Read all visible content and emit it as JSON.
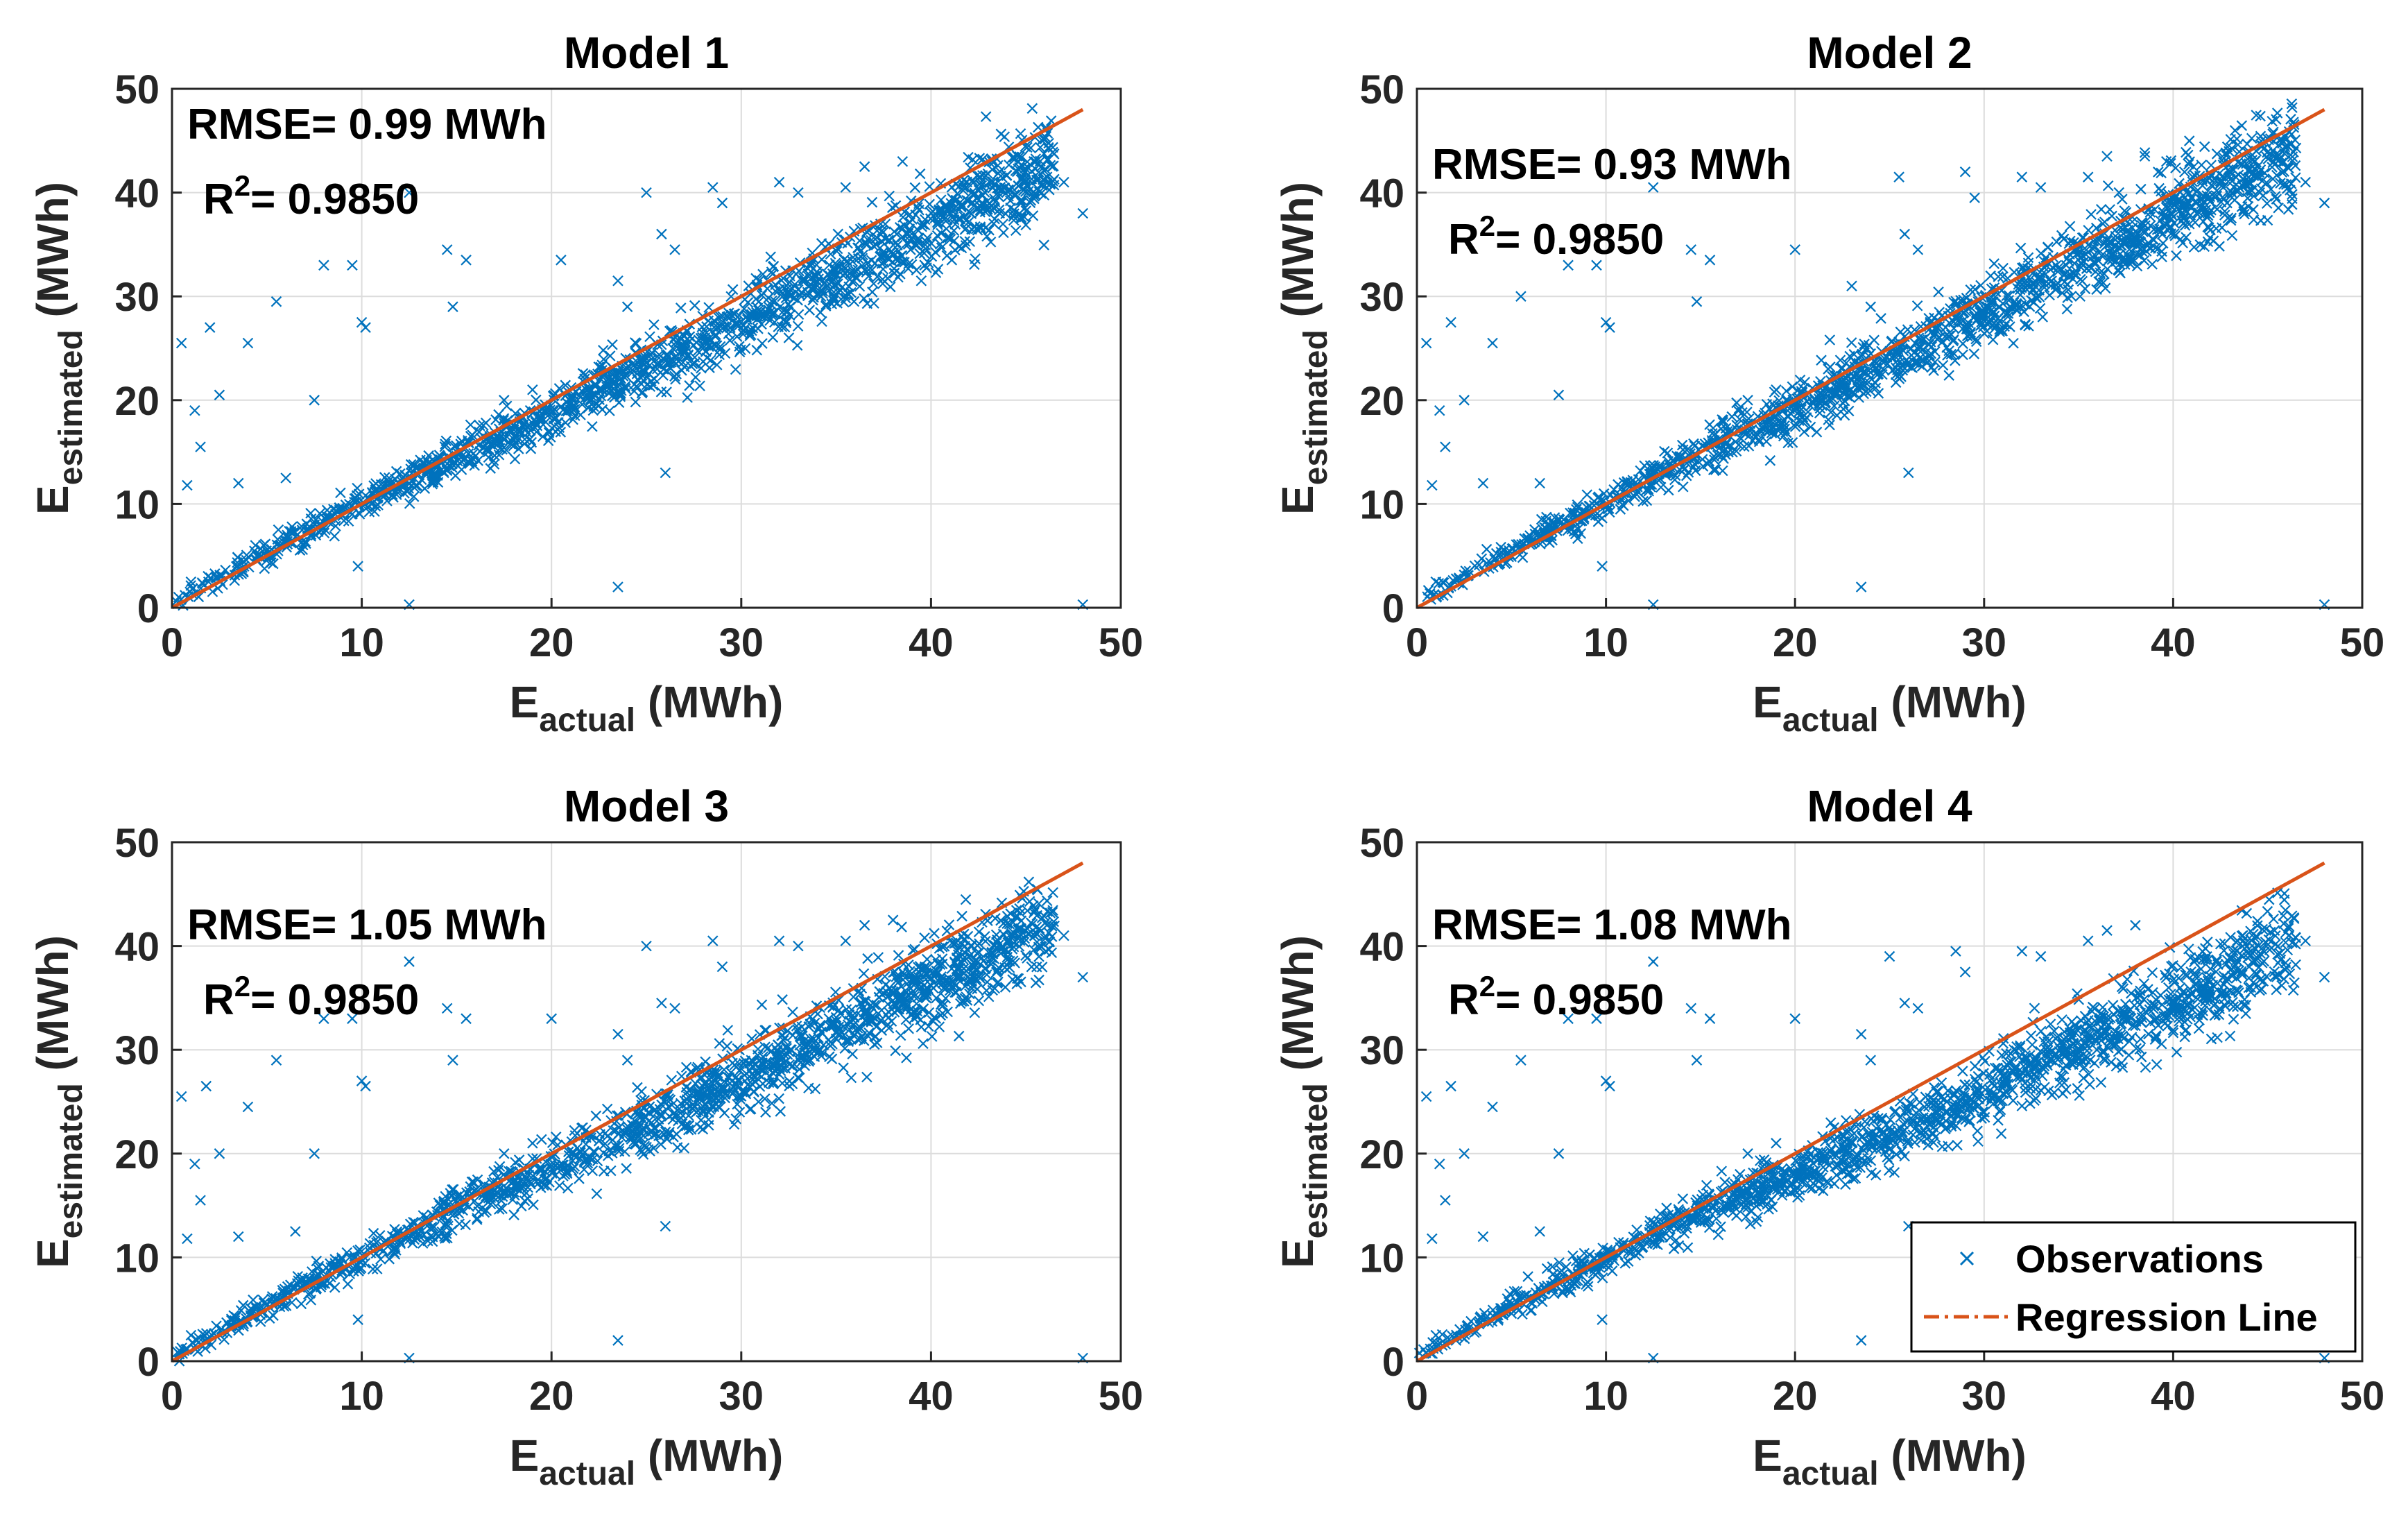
{
  "colors": {
    "observations": "#0072BD",
    "regression": "#D95319",
    "grid": "#DCDCDC",
    "axes": "#262626"
  },
  "chart_data": [
    {
      "type": "scatter",
      "title": "Model 1",
      "xlabel": {
        "main": "E",
        "sub": "actual",
        "unit": " (MWh)"
      },
      "ylabel": {
        "main": "E",
        "sub": "estimated",
        "unit": " (MWh)"
      },
      "xlim": [
        0,
        50
      ],
      "ylim": [
        0,
        50
      ],
      "xticks": [
        "0",
        "10",
        "20",
        "30",
        "40",
        "50"
      ],
      "yticks": [
        "0",
        "10",
        "20",
        "30",
        "40",
        "50"
      ],
      "grid": true,
      "annotations": {
        "rmse": "RMSE= 0.99 MWh",
        "r2_prefix": "R",
        "r2_sup": "2",
        "r2_value": "= 0.9850"
      },
      "regression": {
        "x": [
          0,
          48
        ],
        "y": [
          0,
          48
        ]
      },
      "trend_slope": 0.92,
      "outliers": [
        [
          0.5,
          25.5
        ],
        [
          0.8,
          11.8
        ],
        [
          1.2,
          19.0
        ],
        [
          1.5,
          15.5
        ],
        [
          2.0,
          27.0
        ],
        [
          2.5,
          20.5
        ],
        [
          3.5,
          12.0
        ],
        [
          4.0,
          25.5
        ],
        [
          5.5,
          29.5
        ],
        [
          6.0,
          12.5
        ],
        [
          7.5,
          20.0
        ],
        [
          8.0,
          33.0
        ],
        [
          9.5,
          33.0
        ],
        [
          10.0,
          27.5
        ],
        [
          10.2,
          27.0
        ],
        [
          9.8,
          4.0
        ],
        [
          12.5,
          0.3
        ],
        [
          12.5,
          40.0
        ],
        [
          14.5,
          34.5
        ],
        [
          14.8,
          29.0
        ],
        [
          15.5,
          33.5
        ],
        [
          17.5,
          20.0
        ],
        [
          19.0,
          21.0
        ],
        [
          20.5,
          33.5
        ],
        [
          23.5,
          2.0
        ],
        [
          23.5,
          31.5
        ],
        [
          24.0,
          29.0
        ],
        [
          25.0,
          40.0
        ],
        [
          25.8,
          36.0
        ],
        [
          26.0,
          13.0
        ],
        [
          26.5,
          34.5
        ],
        [
          28.5,
          40.5
        ],
        [
          29.0,
          39.0
        ],
        [
          32.0,
          41.0
        ],
        [
          33.0,
          40.0
        ],
        [
          35.5,
          40.5
        ],
        [
          36.5,
          42.5
        ],
        [
          38.5,
          43.0
        ],
        [
          47.0,
          41.0
        ],
        [
          48.0,
          38.0
        ],
        [
          48.0,
          0.3
        ],
        [
          1.0,
          2.5
        ]
      ]
    },
    {
      "type": "scatter",
      "title": "Model 2",
      "xlabel": {
        "main": "E",
        "sub": "actual",
        "unit": " (MWh)"
      },
      "ylabel": {
        "main": "E",
        "sub": "estimated",
        "unit": " (MWh)"
      },
      "xlim": [
        0,
        50
      ],
      "ylim": [
        0,
        50
      ],
      "xticks": [
        "0",
        "10",
        "20",
        "30",
        "40",
        "50"
      ],
      "yticks": [
        "0",
        "10",
        "20",
        "30",
        "40",
        "50"
      ],
      "grid": true,
      "annotations": {
        "rmse": "RMSE= 0.93 MWh",
        "r2_prefix": "R",
        "r2_sup": "2",
        "r2_value": "= 0.9850"
      },
      "regression": {
        "x": [
          0,
          48
        ],
        "y": [
          0,
          48
        ]
      },
      "trend_slope": 0.95,
      "outliers": [
        [
          0.5,
          25.5
        ],
        [
          0.8,
          11.8
        ],
        [
          1.2,
          19.0
        ],
        [
          1.5,
          15.5
        ],
        [
          1.8,
          27.5
        ],
        [
          2.5,
          20.0
        ],
        [
          3.5,
          12.0
        ],
        [
          4.0,
          25.5
        ],
        [
          5.5,
          30.0
        ],
        [
          6.5,
          12.0
        ],
        [
          7.5,
          20.5
        ],
        [
          8.0,
          33.0
        ],
        [
          9.5,
          33.0
        ],
        [
          10.0,
          27.5
        ],
        [
          10.2,
          27.0
        ],
        [
          9.8,
          4.0
        ],
        [
          12.5,
          0.3
        ],
        [
          12.5,
          40.5
        ],
        [
          14.5,
          34.5
        ],
        [
          14.8,
          29.5
        ],
        [
          15.5,
          33.5
        ],
        [
          17.5,
          20.0
        ],
        [
          19.0,
          21.0
        ],
        [
          20.0,
          34.5
        ],
        [
          23.5,
          2.0
        ],
        [
          23.0,
          31.0
        ],
        [
          24.0,
          29.0
        ],
        [
          25.5,
          41.5
        ],
        [
          25.8,
          36.0
        ],
        [
          26.0,
          13.0
        ],
        [
          26.5,
          34.5
        ],
        [
          29.0,
          42.0
        ],
        [
          29.5,
          39.5
        ],
        [
          32.0,
          41.5
        ],
        [
          33.0,
          40.5
        ],
        [
          35.5,
          41.5
        ],
        [
          36.5,
          43.5
        ],
        [
          38.5,
          43.5
        ],
        [
          47.0,
          41.0
        ],
        [
          48.0,
          39.0
        ],
        [
          48.0,
          0.3
        ],
        [
          1.0,
          2.5
        ]
      ]
    },
    {
      "type": "scatter",
      "title": "Model 3",
      "xlabel": {
        "main": "E",
        "sub": "actual",
        "unit": " (MWh)"
      },
      "ylabel": {
        "main": "E",
        "sub": "estimated",
        "unit": " (MWh)"
      },
      "xlim": [
        0,
        50
      ],
      "ylim": [
        0,
        50
      ],
      "xticks": [
        "0",
        "10",
        "20",
        "30",
        "40",
        "50"
      ],
      "yticks": [
        "0",
        "10",
        "20",
        "30",
        "40",
        "50"
      ],
      "grid": true,
      "annotations": {
        "rmse": "RMSE= 1.05 MWh",
        "r2_prefix": "R",
        "r2_sup": "2",
        "r2_value": "= 0.9850"
      },
      "regression": {
        "x": [
          0,
          48
        ],
        "y": [
          0,
          48
        ]
      },
      "trend_slope": 0.91,
      "outliers": [
        [
          0.5,
          25.5
        ],
        [
          0.8,
          11.8
        ],
        [
          1.2,
          19.0
        ],
        [
          1.5,
          15.5
        ],
        [
          1.8,
          26.5
        ],
        [
          2.5,
          20.0
        ],
        [
          3.5,
          12.0
        ],
        [
          4.0,
          24.5
        ],
        [
          5.5,
          29.0
        ],
        [
          6.5,
          12.5
        ],
        [
          7.5,
          20.0
        ],
        [
          8.0,
          33.0
        ],
        [
          9.5,
          33.0
        ],
        [
          10.0,
          27.0
        ],
        [
          10.2,
          26.5
        ],
        [
          9.8,
          4.0
        ],
        [
          12.5,
          0.3
        ],
        [
          12.5,
          38.5
        ],
        [
          14.5,
          34.0
        ],
        [
          14.8,
          29.0
        ],
        [
          15.5,
          33.0
        ],
        [
          17.5,
          20.0
        ],
        [
          19.0,
          21.0
        ],
        [
          20.0,
          33.0
        ],
        [
          23.5,
          2.0
        ],
        [
          23.5,
          31.5
        ],
        [
          24.0,
          29.0
        ],
        [
          25.0,
          40.0
        ],
        [
          25.8,
          34.5
        ],
        [
          26.0,
          13.0
        ],
        [
          26.5,
          34.0
        ],
        [
          28.5,
          40.5
        ],
        [
          29.0,
          38.0
        ],
        [
          32.0,
          40.5
        ],
        [
          33.0,
          40.0
        ],
        [
          35.5,
          40.5
        ],
        [
          36.5,
          42.0
        ],
        [
          38.0,
          42.5
        ],
        [
          47.0,
          41.0
        ],
        [
          48.0,
          37.0
        ],
        [
          48.0,
          0.3
        ],
        [
          1.0,
          2.5
        ]
      ]
    },
    {
      "type": "scatter",
      "title": "Model 4",
      "xlabel": {
        "main": "E",
        "sub": "actual",
        "unit": " (MWh)"
      },
      "ylabel": {
        "main": "E",
        "sub": "estimated",
        "unit": " (MWh)"
      },
      "xlim": [
        0,
        50
      ],
      "ylim": [
        0,
        50
      ],
      "xticks": [
        "0",
        "10",
        "20",
        "30",
        "40",
        "50"
      ],
      "yticks": [
        "0",
        "10",
        "20",
        "30",
        "40",
        "50"
      ],
      "grid": true,
      "annotations": {
        "rmse": "RMSE= 1.08 MWh",
        "r2_prefix": "R",
        "r2_sup": "2",
        "r2_value": "= 0.9850"
      },
      "regression": {
        "x": [
          0,
          48
        ],
        "y": [
          0,
          48
        ]
      },
      "trend_slope": 0.87,
      "outliers": [
        [
          0.5,
          25.5
        ],
        [
          0.8,
          11.8
        ],
        [
          1.2,
          19.0
        ],
        [
          1.5,
          15.5
        ],
        [
          1.8,
          26.5
        ],
        [
          2.5,
          20.0
        ],
        [
          3.5,
          12.0
        ],
        [
          4.0,
          24.5
        ],
        [
          5.5,
          29.0
        ],
        [
          6.5,
          12.5
        ],
        [
          7.5,
          20.0
        ],
        [
          8.0,
          33.0
        ],
        [
          9.5,
          33.0
        ],
        [
          10.0,
          27.0
        ],
        [
          10.2,
          26.5
        ],
        [
          9.8,
          4.0
        ],
        [
          12.5,
          0.3
        ],
        [
          12.5,
          38.5
        ],
        [
          14.5,
          34.0
        ],
        [
          14.8,
          29.0
        ],
        [
          15.5,
          33.0
        ],
        [
          17.5,
          20.0
        ],
        [
          19.0,
          21.0
        ],
        [
          20.0,
          33.0
        ],
        [
          23.5,
          2.0
        ],
        [
          23.5,
          31.5
        ],
        [
          24.0,
          29.0
        ],
        [
          25.0,
          39.0
        ],
        [
          25.8,
          34.5
        ],
        [
          26.0,
          13.0
        ],
        [
          26.5,
          34.0
        ],
        [
          28.5,
          39.5
        ],
        [
          29.0,
          37.5
        ],
        [
          32.0,
          39.5
        ],
        [
          33.0,
          39.0
        ],
        [
          35.5,
          40.5
        ],
        [
          36.5,
          41.5
        ],
        [
          38.0,
          42.0
        ],
        [
          47.0,
          40.5
        ],
        [
          48.0,
          37.0
        ],
        [
          48.0,
          0.3
        ],
        [
          1.0,
          2.5
        ]
      ],
      "legend": {
        "placement": "bottom-right",
        "entries": [
          "Observations",
          "Regression Line"
        ]
      }
    }
  ]
}
